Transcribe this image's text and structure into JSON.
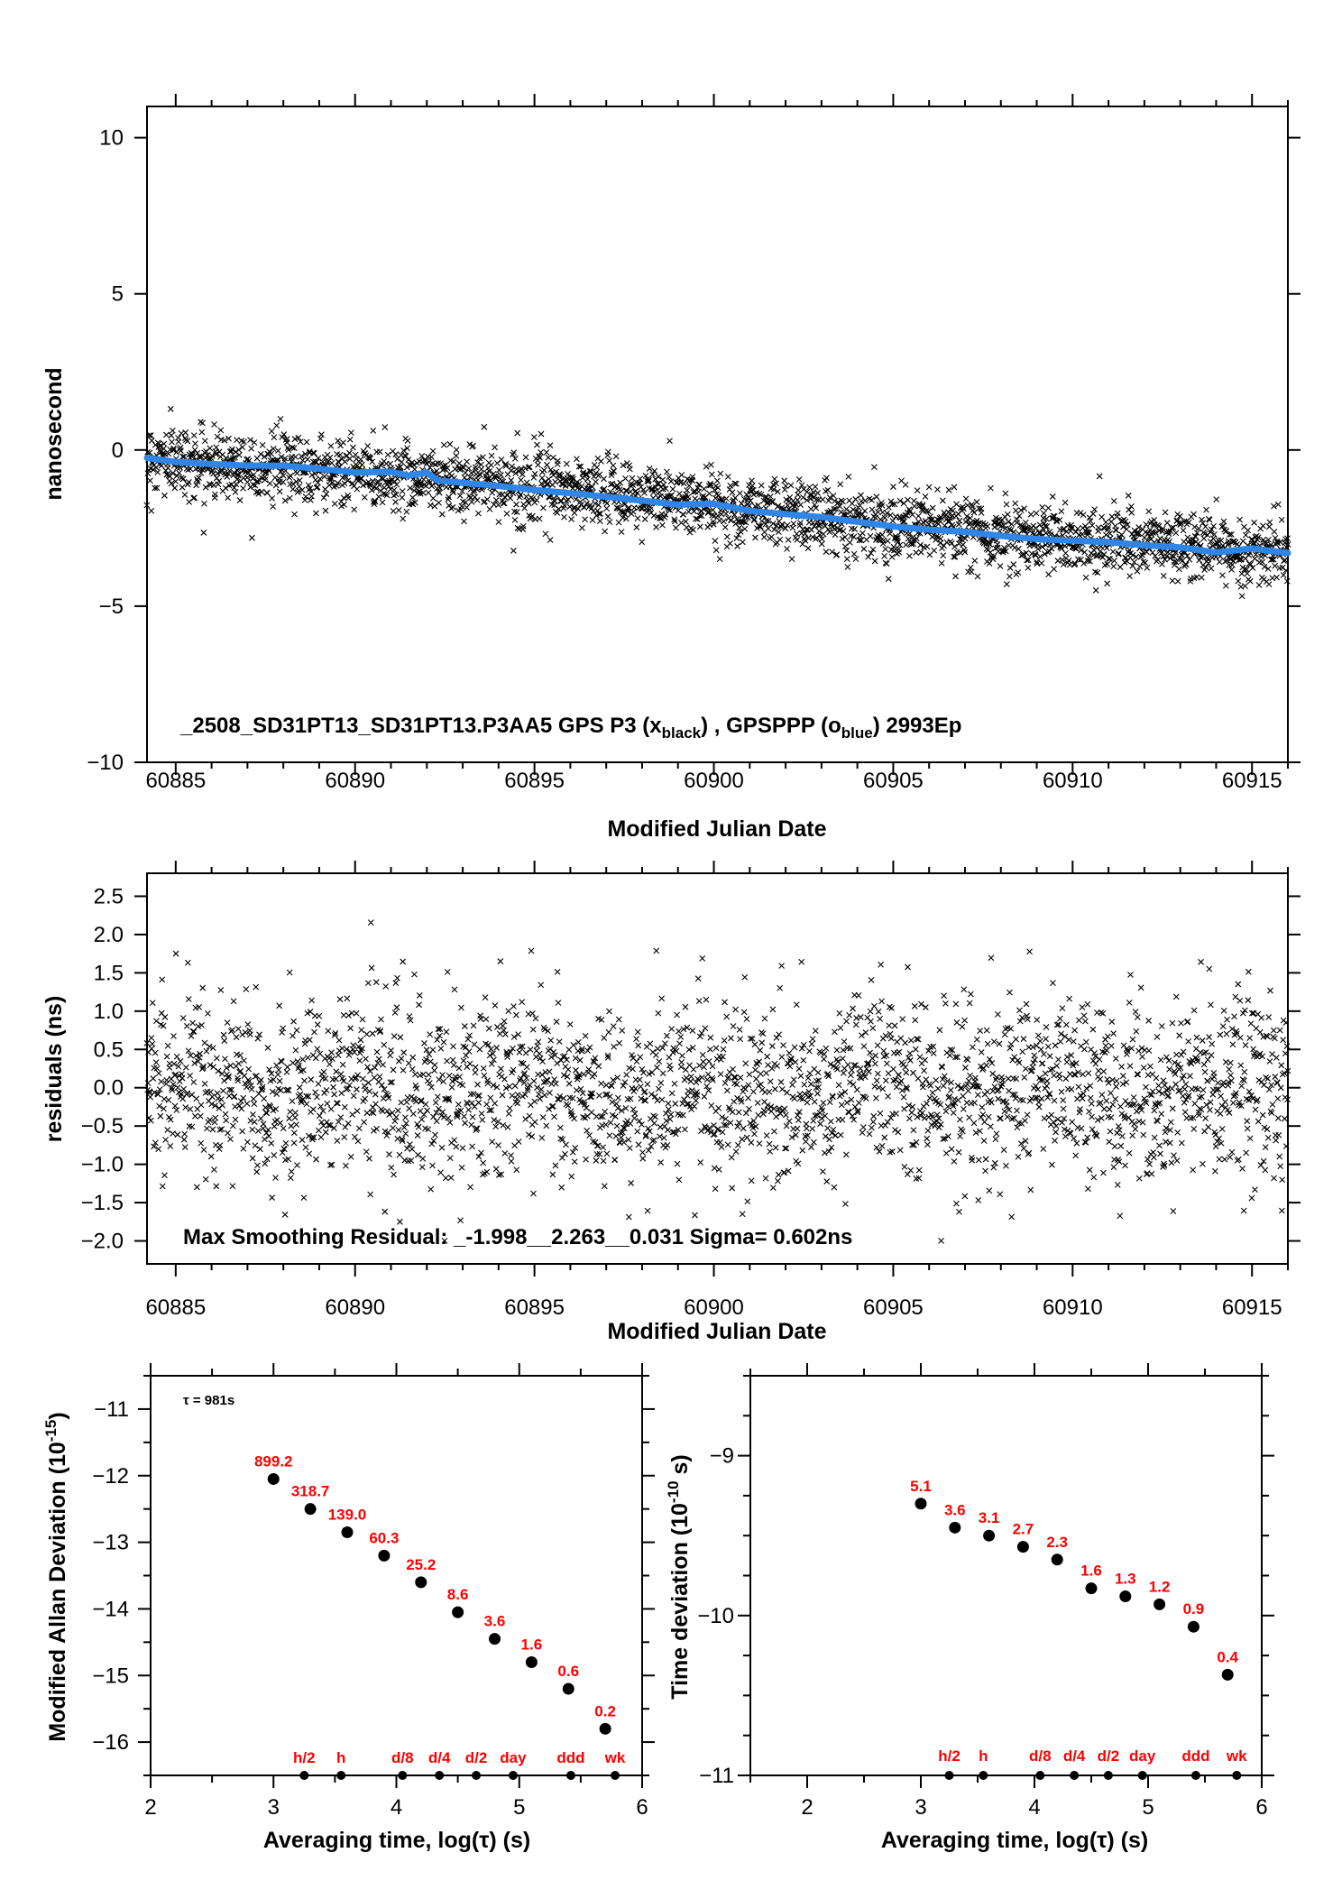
{
  "chart_data": [
    {
      "type": "scatter",
      "xlabel": "Modified Julian Date",
      "ylabel": "nanosecond",
      "xlim": [
        60884.2,
        60916.0
      ],
      "ylim": [
        -10,
        11
      ],
      "x_ticks": [
        60885,
        60890,
        60895,
        60900,
        60905,
        60910,
        60915
      ],
      "y_ticks": [
        -10,
        -5,
        0,
        5,
        10
      ],
      "annotation": {
        "prefix": "_2508_SD31PT13_SD31PT13.P3AA5     GPS P3 (x",
        "sub1": "black",
        "mid": ") ,  GPSPPP (o",
        "sub2": "blue",
        "suffix": ")  2993Ep"
      },
      "series": [
        {
          "marker": "x",
          "color": "#000000",
          "trend_x": [
            60884.2,
            60886,
            60888,
            60890,
            60892,
            60894,
            60896,
            60898,
            60900,
            60902,
            60904,
            60906,
            60908,
            60910,
            60912,
            60914,
            60916
          ],
          "trend_y": [
            -0.25,
            -0.45,
            -0.55,
            -0.75,
            -0.85,
            -1.05,
            -1.3,
            -1.5,
            -1.75,
            -2.0,
            -2.25,
            -2.5,
            -2.7,
            -2.85,
            -3.0,
            -3.15,
            -3.35
          ],
          "noise_sigma": 0.55
        },
        {
          "marker": "o",
          "color": "#2f86e6",
          "x": [
            60884.2,
            60885,
            60886,
            60887,
            60888,
            60889,
            60890,
            60891,
            60891.5,
            60892,
            60892.3,
            60893,
            60894,
            60895,
            60896,
            60897,
            60898,
            60899,
            60900,
            60901,
            60902,
            60902.5,
            60903,
            60904,
            60905,
            60906,
            60907,
            60908,
            60909,
            60910,
            60911,
            60912,
            60913,
            60914,
            60915,
            60916
          ],
          "y": [
            -0.25,
            -0.38,
            -0.45,
            -0.5,
            -0.5,
            -0.6,
            -0.72,
            -0.7,
            -0.82,
            -0.72,
            -0.98,
            -1.05,
            -1.15,
            -1.28,
            -1.38,
            -1.5,
            -1.62,
            -1.75,
            -1.72,
            -1.95,
            -2.05,
            -2.1,
            -2.15,
            -2.3,
            -2.45,
            -2.55,
            -2.62,
            -2.75,
            -2.85,
            -2.9,
            -2.95,
            -3.05,
            -3.12,
            -3.28,
            -3.15,
            -3.3
          ]
        }
      ]
    },
    {
      "type": "scatter",
      "xlabel": "Modified Julian Date",
      "ylabel": "residuals (ns)",
      "xlim": [
        60884.2,
        60916.0
      ],
      "ylim": [
        -2.3,
        2.8
      ],
      "x_ticks": [
        60885,
        60890,
        60895,
        60900,
        60905,
        60910,
        60915
      ],
      "y_ticks": [
        -2.0,
        -1.5,
        -1.0,
        -0.5,
        0.0,
        0.5,
        1.0,
        1.5,
        2.0,
        2.5
      ],
      "annotation": "Max Smoothing Residual: _-1.998__2.263__0.031  Sigma= 0.602ns",
      "series": [
        {
          "marker": "x",
          "color": "#000000",
          "noise_sigma": 0.602,
          "min": -1.998,
          "max": 2.263
        }
      ]
    },
    {
      "type": "scatter",
      "xlabel": "Averaging time, log(τ) (s)",
      "ylabel_main": "Modified Allan Deviation (10",
      "ylabel_sup": "-15",
      "ylabel_end": ")",
      "xlim": [
        2,
        6
      ],
      "ylim": [
        -16.5,
        -10.5
      ],
      "x_ticks": [
        2,
        3,
        4,
        5,
        6
      ],
      "y_ticks": [
        -16,
        -15,
        -14,
        -13,
        -12,
        -11
      ],
      "note": "τ = 981s",
      "points": {
        "x": [
          3.0,
          3.3,
          3.6,
          3.9,
          4.2,
          4.5,
          4.8,
          5.1,
          5.4,
          5.7
        ],
        "y": [
          -12.05,
          -12.5,
          -12.85,
          -13.2,
          -13.6,
          -14.05,
          -14.45,
          -14.8,
          -15.2,
          -15.8
        ],
        "labels": [
          "899.2",
          "318.7",
          "139.0",
          "60.3",
          "25.2",
          "8.6",
          "3.6",
          "1.6",
          "0.6",
          "0.2"
        ]
      },
      "markers": {
        "x": [
          3.25,
          3.55,
          4.05,
          4.35,
          4.65,
          4.95,
          5.42,
          5.78
        ],
        "labels": [
          "h/2",
          "h",
          "d/8",
          "d/4",
          "d/2",
          "day",
          "ddd",
          "wk"
        ]
      }
    },
    {
      "type": "scatter",
      "xlabel": "Averaging time, log(τ) (s)",
      "ylabel_main": "Time deviation (10",
      "ylabel_sup": "-10",
      "ylabel_end": " s)",
      "xlim": [
        1.5,
        6
      ],
      "ylim": [
        -11,
        -8.5
      ],
      "x_ticks": [
        2,
        3,
        4,
        5,
        6
      ],
      "y_ticks": [
        -11,
        -10,
        -9
      ],
      "points": {
        "x": [
          3.0,
          3.3,
          3.6,
          3.9,
          4.2,
          4.5,
          4.8,
          5.1,
          5.4,
          5.7
        ],
        "y": [
          -9.3,
          -9.45,
          -9.5,
          -9.57,
          -9.65,
          -9.83,
          -9.88,
          -9.93,
          -10.07,
          -10.37
        ],
        "labels": [
          "5.1",
          "3.6",
          "3.1",
          "2.7",
          "2.3",
          "1.6",
          "1.3",
          "1.2",
          "0.9",
          "0.4"
        ]
      },
      "markers": {
        "x": [
          3.25,
          3.55,
          4.05,
          4.35,
          4.65,
          4.95,
          5.42,
          5.78
        ],
        "labels": [
          "h/2",
          "h",
          "d/8",
          "d/4",
          "d/2",
          "day",
          "ddd",
          "wk"
        ]
      }
    }
  ]
}
